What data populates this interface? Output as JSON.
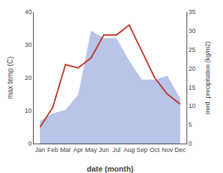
{
  "chart_data": {
    "type": "line",
    "categories": [
      "Jan",
      "Feb",
      "Mar",
      "Apr",
      "May",
      "Jun",
      "Jul",
      "Aug",
      "Sep",
      "Oct",
      "Nov",
      "Dec"
    ],
    "xlabel": "date (month)",
    "ylabel": "max temp (C)",
    "y2label": "med. precipitation (kg/m2)",
    "series": [
      {
        "type": "area",
        "axis": "y2",
        "color": "#b8c4e8",
        "values": [
          6,
          8,
          9,
          13,
          30,
          28,
          28,
          22,
          17,
          17,
          18,
          12
        ]
      },
      {
        "type": "line",
        "color": "#c0392b",
        "values": [
          5,
          11,
          24,
          23,
          26,
          33,
          33,
          36,
          28,
          20,
          15,
          12
        ]
      }
    ],
    "ylim": [
      0,
      40
    ],
    "yticks": [
      0,
      10,
      20,
      30,
      40
    ],
    "y2lim": [
      0,
      35
    ],
    "y2ticks": [
      0,
      5,
      10,
      15,
      20,
      25,
      30,
      35
    ],
    "grid": false
  }
}
